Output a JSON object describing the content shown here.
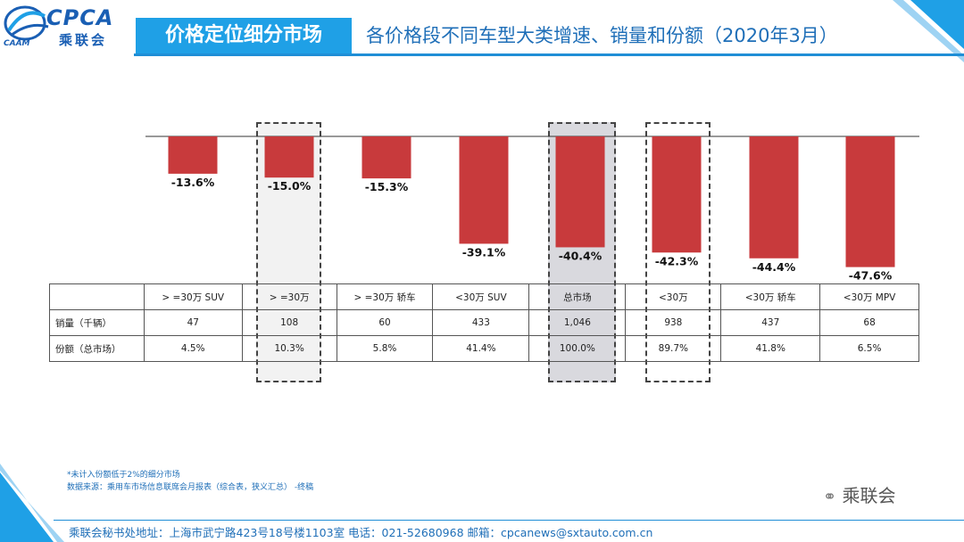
{
  "header": {
    "logo_cpca": "CPCA",
    "logo_cn": "乘联会",
    "logo_caam": "CAAM",
    "title_main": "价格定位细分市场",
    "title_sub": "各价格段不同车型大类增速、销量和份额（2020年3月）"
  },
  "colors": {
    "bar": "#c83a3c",
    "accent": "#1fa0e6",
    "text_blue": "#1f6fb8"
  },
  "chart_data": {
    "type": "bar",
    "title": "各价格段不同车型大类增速、销量和份额（2020年3月）",
    "categories": [
      ">=30万 SUV",
      ">=30万",
      ">=30万 轿车",
      "<30万 SUV",
      "总市场",
      "<30万",
      "<30万 轿车",
      "<30万 MPV"
    ],
    "values": [
      -13.6,
      -15.0,
      -15.3,
      -39.1,
      -40.4,
      -42.3,
      -44.4,
      -47.6
    ],
    "value_labels": [
      "-13.6%",
      "-15.0%",
      "-15.3%",
      "-39.1%",
      "-40.4%",
      "-42.3%",
      "-44.4%",
      "-47.6%"
    ],
    "unit": "%",
    "ylim": [
      -50,
      0
    ],
    "highlighted": [
      ">=30万",
      "总市场",
      "<30万"
    ]
  },
  "table": {
    "header_labels": [
      "> =30万 SUV",
      "> =30万",
      "> =30万 轿车",
      "<30万 SUV",
      "总市场",
      "<30万",
      "<30万 轿车",
      "<30万 MPV"
    ],
    "rows": [
      {
        "label": "销量（千辆）",
        "values": [
          "47",
          "108",
          "60",
          "433",
          "1,046",
          "938",
          "437",
          "68"
        ]
      },
      {
        "label": "份额（总市场）",
        "values": [
          "4.5%",
          "10.3%",
          "5.8%",
          "41.4%",
          "100.0%",
          "89.7%",
          "41.8%",
          "6.5%"
        ]
      }
    ]
  },
  "notes": {
    "line1": "*未计入份额低于2%的细分市场",
    "line2": "数据来源：乘用车市场信息联席会月报表（综合表，狭义汇总）  -终稿"
  },
  "footer": {
    "text": "乘联会秘书处地址：上海市武宁路423号18号楼1103室  电话：021-52680968   邮箱：cpcanews@sxtauto.com.cn",
    "wechat": "乘联会"
  }
}
